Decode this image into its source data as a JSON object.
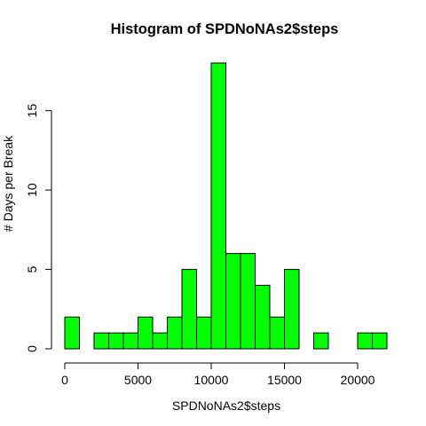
{
  "chart_data": {
    "type": "bar",
    "title": "Histogram of SPDNoNAs2$steps",
    "xlabel": "SPDNoNAs2$steps",
    "ylabel": "# Days per Break",
    "bin_width": 1000,
    "bins": [
      {
        "start": 0,
        "end": 1000,
        "count": 2
      },
      {
        "start": 1000,
        "end": 2000,
        "count": 0
      },
      {
        "start": 2000,
        "end": 3000,
        "count": 1
      },
      {
        "start": 3000,
        "end": 4000,
        "count": 1
      },
      {
        "start": 4000,
        "end": 5000,
        "count": 1
      },
      {
        "start": 5000,
        "end": 6000,
        "count": 2
      },
      {
        "start": 6000,
        "end": 7000,
        "count": 1
      },
      {
        "start": 7000,
        "end": 8000,
        "count": 2
      },
      {
        "start": 8000,
        "end": 9000,
        "count": 5
      },
      {
        "start": 9000,
        "end": 10000,
        "count": 2
      },
      {
        "start": 10000,
        "end": 11000,
        "count": 18
      },
      {
        "start": 11000,
        "end": 12000,
        "count": 6
      },
      {
        "start": 12000,
        "end": 13000,
        "count": 6
      },
      {
        "start": 13000,
        "end": 14000,
        "count": 4
      },
      {
        "start": 14000,
        "end": 15000,
        "count": 2
      },
      {
        "start": 15000,
        "end": 16000,
        "count": 5
      },
      {
        "start": 16000,
        "end": 17000,
        "count": 0
      },
      {
        "start": 17000,
        "end": 18000,
        "count": 1
      },
      {
        "start": 18000,
        "end": 19000,
        "count": 0
      },
      {
        "start": 19000,
        "end": 20000,
        "count": 0
      },
      {
        "start": 20000,
        "end": 21000,
        "count": 1
      },
      {
        "start": 21000,
        "end": 22000,
        "count": 1
      }
    ],
    "xticks": [
      0,
      5000,
      10000,
      15000,
      20000
    ],
    "yticks": [
      0,
      5,
      10,
      15
    ],
    "xlim": [
      0,
      22000
    ],
    "ylim": [
      0,
      18
    ],
    "bar_color": "#00ff00",
    "bar_edge_color": "#000000",
    "grid": false,
    "legend": "none"
  }
}
